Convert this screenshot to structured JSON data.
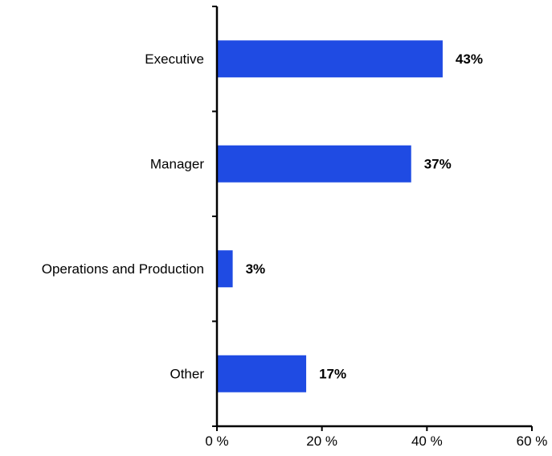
{
  "chart_data": {
    "type": "bar",
    "orientation": "horizontal",
    "categories": [
      "Executive",
      "Manager",
      "Operations and Production",
      "Other"
    ],
    "values": [
      43,
      37,
      3,
      17
    ],
    "data_labels": [
      "43%",
      "37%",
      "3%",
      "17%"
    ],
    "xlim": [
      0,
      60
    ],
    "x_ticks": [
      0,
      20,
      40,
      60
    ],
    "x_tick_labels": [
      "0 %",
      "20 %",
      "40 %",
      "60 %"
    ],
    "title": "",
    "xlabel": "",
    "ylabel": "",
    "grid": false,
    "bar_color": "#1f4be3"
  }
}
